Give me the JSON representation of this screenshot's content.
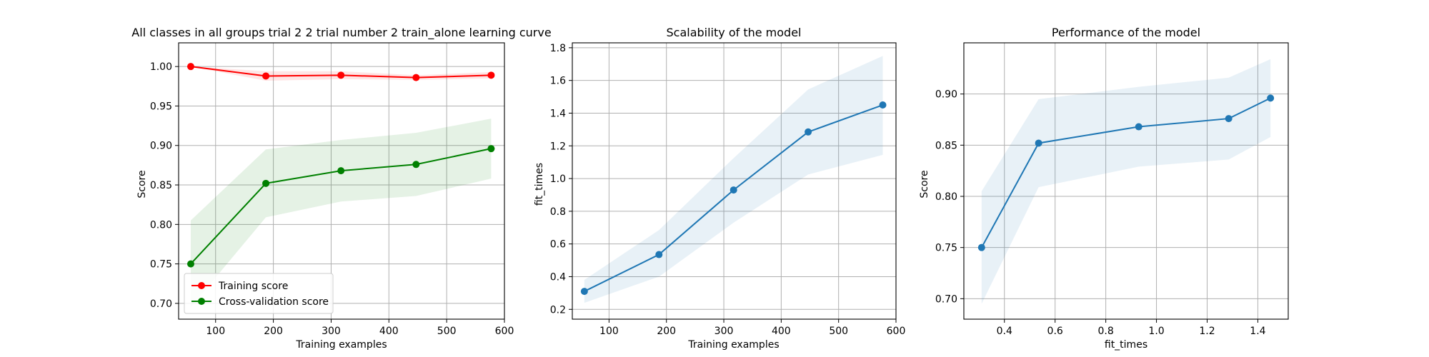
{
  "colors": {
    "training": "#ff0000",
    "cross_validation": "#008000",
    "blue": "#1f77b4"
  },
  "chart_data": [
    {
      "type": "line",
      "title": "All classes in all groups trial 2 2 trial number 2 train_alone learning curve",
      "xlabel": "Training examples",
      "ylabel": "Score",
      "xlim": [
        36,
        600
      ],
      "ylim": [
        0.68,
        1.03
      ],
      "xticks": [
        100,
        200,
        300,
        400,
        500,
        600
      ],
      "yticks": [
        0.7,
        0.75,
        0.8,
        0.85,
        0.9,
        0.95,
        1.0
      ],
      "grid": true,
      "legend_position": "lower-left",
      "x": [
        57,
        187,
        317,
        447,
        577
      ],
      "series": [
        {
          "name": "Training score",
          "color": "#ff0000",
          "values": [
            1.0,
            0.988,
            0.989,
            0.986,
            0.989
          ],
          "band_lower": [
            1.0,
            0.982,
            0.984,
            0.983,
            0.985
          ],
          "band_upper": [
            1.0,
            0.994,
            0.994,
            0.989,
            0.993
          ]
        },
        {
          "name": "Cross-validation score",
          "color": "#008000",
          "values": [
            0.75,
            0.852,
            0.868,
            0.876,
            0.896
          ],
          "band_lower": [
            0.695,
            0.809,
            0.829,
            0.836,
            0.858
          ],
          "band_upper": [
            0.805,
            0.895,
            0.907,
            0.916,
            0.934
          ]
        }
      ]
    },
    {
      "type": "line",
      "title": "Scalability of the model",
      "xlabel": "Training examples",
      "ylabel": "fit_times",
      "xlim": [
        36,
        600
      ],
      "ylim": [
        0.14,
        1.83
      ],
      "xticks": [
        100,
        200,
        300,
        400,
        500,
        600
      ],
      "yticks": [
        0.2,
        0.4,
        0.6,
        0.8,
        1.0,
        1.2,
        1.4,
        1.6,
        1.8
      ],
      "grid": true,
      "x": [
        57,
        187,
        317,
        447,
        577
      ],
      "series": [
        {
          "color": "#1f77b4",
          "values": [
            0.31,
            0.535,
            0.93,
            1.285,
            1.45
          ],
          "band_lower": [
            0.24,
            0.4,
            0.73,
            1.025,
            1.145
          ],
          "band_upper": [
            0.38,
            0.685,
            1.125,
            1.545,
            1.75
          ]
        }
      ]
    },
    {
      "type": "line",
      "title": "Performance of the model",
      "xlabel": "fit_times",
      "ylabel": "Score",
      "xlim": [
        0.24,
        1.52
      ],
      "ylim": [
        0.68,
        0.95
      ],
      "xticks": [
        0.4,
        0.6,
        0.8,
        1.0,
        1.2,
        1.4
      ],
      "yticks": [
        0.7,
        0.75,
        0.8,
        0.85,
        0.9
      ],
      "grid": true,
      "x": [
        0.31,
        0.535,
        0.93,
        1.285,
        1.45
      ],
      "series": [
        {
          "color": "#1f77b4",
          "values": [
            0.75,
            0.852,
            0.868,
            0.876,
            0.896
          ],
          "band_lower": [
            0.695,
            0.809,
            0.829,
            0.836,
            0.858
          ],
          "band_upper": [
            0.805,
            0.895,
            0.907,
            0.916,
            0.934
          ]
        }
      ]
    }
  ]
}
